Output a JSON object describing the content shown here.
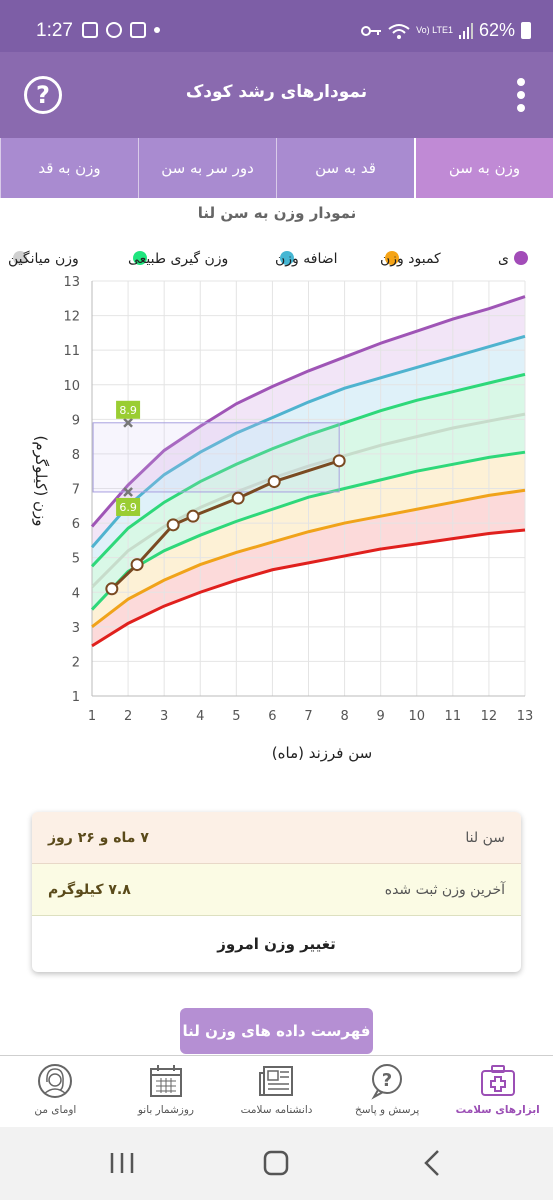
{
  "status_bar": {
    "time": "1:27",
    "battery": "62%",
    "network": "Vo) LTE1"
  },
  "app_bar": {
    "title": "نمودارهای رشد کودک",
    "help_icon": "question-circle-icon",
    "menu_icon": "kebab-menu-icon"
  },
  "tabs": [
    {
      "label": "وزن به سن",
      "active": true
    },
    {
      "label": "قد به سن",
      "active": false
    },
    {
      "label": "دور سر به سن",
      "active": false
    },
    {
      "label": "وزن به قد",
      "active": false
    }
  ],
  "chart_data": {
    "type": "line",
    "title": "نمودار وزن به سن لنا",
    "xlabel": "سن فرزند (ماه)",
    "ylabel": "وزن (کیلوگرم)",
    "xlim": [
      1,
      13
    ],
    "ylim": [
      1,
      13
    ],
    "x_ticks": [
      "1",
      "2",
      "3",
      "4",
      "5",
      "6",
      "7",
      "8",
      "9",
      "10",
      "11",
      "12",
      "13"
    ],
    "y_ticks": [
      "1",
      "2",
      "3",
      "4",
      "5",
      "6",
      "7",
      "8",
      "9",
      "10",
      "11",
      "12",
      "13"
    ],
    "grid": true,
    "legend_position": "top",
    "legend": [
      {
        "label": "چاقی",
        "color": "#a24cb8",
        "visible_text": "ی"
      },
      {
        "label": "کمبود وزن",
        "color": "#f5a417"
      },
      {
        "label": "اضافه وزن",
        "color": "#45b6d3"
      },
      {
        "label": "وزن گیری طبیعی",
        "color": "#1fe57e"
      },
      {
        "label": "وزن میانگین",
        "color": "#d0d0d0"
      }
    ],
    "curves": [
      {
        "name": "obesity",
        "color": "#9f55b6",
        "x": [
          1,
          2,
          3,
          4,
          5,
          6,
          7,
          8,
          9,
          10,
          11,
          12,
          13
        ],
        "y": [
          5.9,
          7.1,
          8.1,
          8.8,
          9.45,
          9.95,
          10.4,
          10.8,
          11.2,
          11.55,
          11.9,
          12.2,
          12.55
        ]
      },
      {
        "name": "overweight",
        "color": "#4fb3cf",
        "x": [
          1,
          2,
          3,
          4,
          5,
          6,
          7,
          8,
          9,
          10,
          11,
          12,
          13
        ],
        "y": [
          5.3,
          6.5,
          7.4,
          8.05,
          8.6,
          9.05,
          9.5,
          9.9,
          10.2,
          10.5,
          10.8,
          11.1,
          11.4
        ]
      },
      {
        "name": "normal-upper",
        "color": "#2ed87a",
        "x": [
          1,
          2,
          3,
          4,
          5,
          6,
          7,
          8,
          9,
          10,
          11,
          12,
          13
        ],
        "y": [
          4.75,
          5.85,
          6.6,
          7.2,
          7.7,
          8.15,
          8.55,
          8.9,
          9.25,
          9.55,
          9.8,
          10.05,
          10.3
        ]
      },
      {
        "name": "average",
        "color": "#c7dccb",
        "x": [
          1,
          2,
          3,
          4,
          5,
          6,
          7,
          8,
          9,
          10,
          11,
          12,
          13
        ],
        "y": [
          4.15,
          5.2,
          5.9,
          6.45,
          6.9,
          7.3,
          7.65,
          7.95,
          8.25,
          8.5,
          8.75,
          8.95,
          9.15
        ]
      },
      {
        "name": "normal-lower",
        "color": "#2ed87a",
        "x": [
          1,
          2,
          3,
          4,
          5,
          6,
          7,
          8,
          9,
          10,
          11,
          12,
          13
        ],
        "y": [
          3.5,
          4.6,
          5.2,
          5.65,
          6.05,
          6.4,
          6.75,
          7.0,
          7.25,
          7.5,
          7.7,
          7.9,
          8.05
        ]
      },
      {
        "name": "underweight",
        "color": "#f0a31a",
        "x": [
          1,
          2,
          3,
          4,
          5,
          6,
          7,
          8,
          9,
          10,
          11,
          12,
          13
        ],
        "y": [
          3.0,
          3.8,
          4.35,
          4.8,
          5.15,
          5.45,
          5.75,
          6.0,
          6.2,
          6.4,
          6.6,
          6.8,
          6.95
        ]
      },
      {
        "name": "severe-underweight",
        "color": "#e0201d",
        "x": [
          1,
          2,
          3,
          4,
          5,
          6,
          7,
          8,
          9,
          10,
          11,
          12,
          13
        ],
        "y": [
          2.45,
          3.1,
          3.6,
          4.0,
          4.35,
          4.65,
          4.85,
          5.05,
          5.25,
          5.4,
          5.55,
          5.7,
          5.8
        ]
      }
    ],
    "child_series": {
      "name": "لنا",
      "color": "#7a4a22",
      "x": [
        1.55,
        2.25,
        3.25,
        3.8,
        5.05,
        6.05,
        7.85
      ],
      "y": [
        4.1,
        4.8,
        5.95,
        6.2,
        6.72,
        7.2,
        7.8
      ]
    },
    "annotation": {
      "x": 2,
      "y_top": 8.9,
      "y_bottom": 6.9,
      "label_top": "8.9",
      "label_bottom": "6.9",
      "color": "#9acd32"
    }
  },
  "info_card": {
    "age_label": "سن لنا",
    "age_value": "۷ ماه و ۲۶ روز",
    "weight_label": "آخرین وزن ثبت شده",
    "weight_value": "۷.۸ کیلوگرم",
    "change_button": "تغییر وزن امروز"
  },
  "list_button": "فهرست داده های وزن لنا",
  "bottom_nav": [
    {
      "label": "ابزارهای سلامت",
      "icon": "first-aid-kit-icon",
      "active": true
    },
    {
      "label": "پرسش و پاسخ",
      "icon": "question-bubble-icon",
      "active": false
    },
    {
      "label": "دانشنامه سلامت",
      "icon": "newspaper-icon",
      "active": false
    },
    {
      "label": "روزشمار بانو",
      "icon": "calendar-icon",
      "active": false
    },
    {
      "label": "اومای من",
      "icon": "avatar-woman-icon",
      "active": false
    }
  ]
}
